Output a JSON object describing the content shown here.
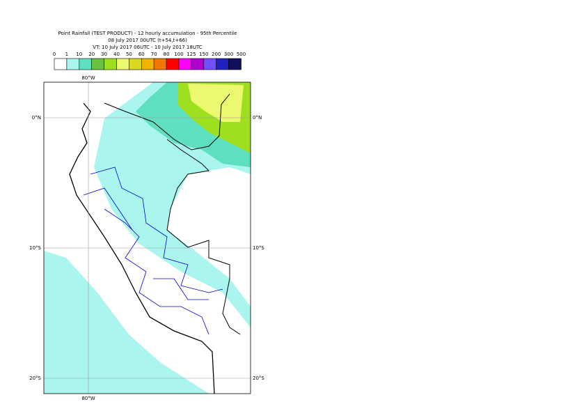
{
  "header": {
    "title_lines": [
      "Point Rainfall (TEST PRODUCT) - 12 hourly accumulation - 95th Percentile",
      "08 July 2017 00UTC (t+54,t+66)",
      "VT: 10 July 2017 06UTC - 10 July 2017 18UTC"
    ]
  },
  "legend": {
    "labels": [
      "0",
      "1",
      "10",
      "20",
      "30",
      "40",
      "50",
      "60",
      "70",
      "80",
      "100",
      "125",
      "150",
      "200",
      "300",
      "500"
    ],
    "colors": [
      "#ffffff",
      "#aaf5ee",
      "#5ee0c0",
      "#6cc040",
      "#9ee020",
      "#ecf870",
      "#d8d820",
      "#f0b400",
      "#f07800",
      "#ff0000",
      "#ff00ff",
      "#b000d0",
      "#7050ff",
      "#2020c0",
      "#10105a"
    ]
  },
  "map": {
    "lon_labels": [
      "80°W"
    ],
    "lat_labels": [
      "0°N",
      "10°S",
      "20°S"
    ]
  }
}
